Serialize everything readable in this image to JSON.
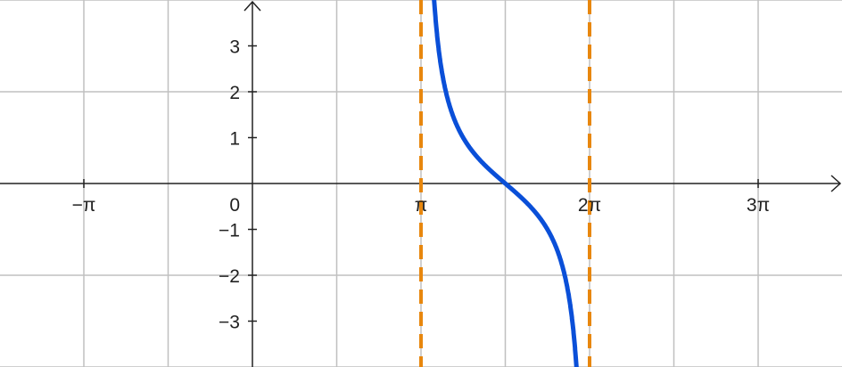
{
  "chart_data": {
    "type": "line",
    "title": "",
    "xlabel": "",
    "ylabel": "",
    "xlim": [
      -4.7,
      10.99
    ],
    "ylim": [
      -4,
      4
    ],
    "grid": true,
    "grid_x_step": "π/2",
    "grid_y_step": 2,
    "x_ticks": [
      {
        "value": -3.14159,
        "label": "−π"
      },
      {
        "value": 3.14159,
        "label": "π"
      },
      {
        "value": 6.28319,
        "label": "2π"
      },
      {
        "value": 9.42478,
        "label": "3π"
      }
    ],
    "y_ticks": [
      {
        "value": 3,
        "label": "3"
      },
      {
        "value": 2,
        "label": "2"
      },
      {
        "value": 1,
        "label": "1"
      },
      {
        "value": -1,
        "label": "−1"
      },
      {
        "value": -2,
        "label": "−2"
      },
      {
        "value": -3,
        "label": "−3"
      }
    ],
    "origin_label": "0",
    "series": [
      {
        "function": "cot(x)",
        "domain": [
          3.14159,
          6.28319
        ],
        "color": "#0a4fd8",
        "samples": [
          [
            3.53,
            2.41
          ],
          [
            3.93,
            1.0
          ],
          [
            4.32,
            0.41
          ],
          [
            4.71,
            0.0
          ],
          [
            5.11,
            -0.41
          ],
          [
            5.5,
            -1.0
          ],
          [
            5.89,
            -2.41
          ]
        ]
      }
    ],
    "asymptotes": [
      {
        "x": 3.14159,
        "style": "dashed",
        "color": "#e8870e"
      },
      {
        "x": 6.28319,
        "style": "dashed",
        "color": "#e8870e"
      }
    ],
    "colors": {
      "grid": "#c0c0c0",
      "axis": "#222222"
    }
  }
}
